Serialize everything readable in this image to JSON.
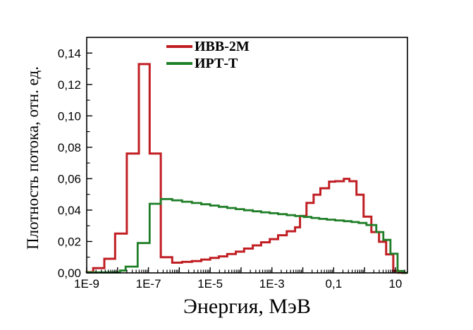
{
  "figure": {
    "background": "#ffffff",
    "xlabel": "Энергия, МэВ",
    "ylabel": "Плотность потока, отн. ед.",
    "legend": [
      {
        "label": "ИВВ-2М",
        "color": "#c01e23"
      },
      {
        "label": "ИРТ-Т",
        "color": "#1f7e27"
      }
    ]
  },
  "chart_data": {
    "type": "line",
    "subtype": "step-histogram",
    "title": "",
    "xlabel": "Энергия, МэВ",
    "ylabel": "Плотность потока, отн. ед.",
    "x_scale": "log10",
    "xlim_log10": [
      -9,
      1.39
    ],
    "ylim": [
      0,
      0.15
    ],
    "grid": false,
    "legend_position": "top-center-inside",
    "x_ticks": [
      {
        "log10": -9,
        "label": "1E-9"
      },
      {
        "log10": -7,
        "label": "1E-7"
      },
      {
        "log10": -5,
        "label": "1E-5"
      },
      {
        "log10": -3,
        "label": "1E-3"
      },
      {
        "log10": -1,
        "label": "0,1"
      },
      {
        "log10": 1,
        "label": "10"
      }
    ],
    "x_unlabeled_decades": [
      -8,
      -6,
      -4,
      -2,
      0
    ],
    "y_ticks": [
      {
        "value": 0.0,
        "label": "0,00"
      },
      {
        "value": 0.02,
        "label": "0,02"
      },
      {
        "value": 0.04,
        "label": "0,04"
      },
      {
        "value": 0.06,
        "label": "0,06"
      },
      {
        "value": 0.08,
        "label": "0,08"
      },
      {
        "value": 0.1,
        "label": "0,10"
      },
      {
        "value": 0.12,
        "label": "0,12"
      },
      {
        "value": 0.14,
        "label": "0,14"
      }
    ],
    "y_minor_step": 0.01,
    "series": [
      {
        "name": "ИВВ-2М",
        "color": "#c01e23",
        "line_width": 3,
        "bin_edges_log10": [
          -9.0,
          -8.79,
          -8.43,
          -8.08,
          -7.7,
          -7.31,
          -6.96,
          -6.6,
          -6.23,
          -5.91,
          -5.59,
          -5.29,
          -5.0,
          -4.72,
          -4.45,
          -4.17,
          -3.9,
          -3.62,
          -3.35,
          -3.07,
          -2.8,
          -2.52,
          -2.25,
          -2.09,
          -1.88,
          -1.65,
          -1.43,
          -1.15,
          -0.95,
          -0.67,
          -0.49,
          -0.26,
          -0.03,
          0.22,
          0.47,
          0.7,
          0.93,
          1.09,
          1.23
        ],
        "values": [
          0.0005,
          0.003,
          0.009,
          0.025,
          0.076,
          0.133,
          0.076,
          0.01,
          0.0065,
          0.007,
          0.0075,
          0.0085,
          0.0095,
          0.0105,
          0.012,
          0.0135,
          0.0155,
          0.0175,
          0.0195,
          0.0215,
          0.024,
          0.0265,
          0.029,
          0.0363,
          0.0446,
          0.0498,
          0.0539,
          0.0581,
          0.0584,
          0.0599,
          0.0584,
          0.0498,
          0.0358,
          0.026,
          0.0198,
          0.0118,
          0.0012,
          0.0002
        ]
      },
      {
        "name": "ИРТ-Т",
        "color": "#1f7e27",
        "line_width": 2.8,
        "bin_edges_log10": [
          -9.0,
          -7.92,
          -7.74,
          -7.35,
          -6.96,
          -6.6,
          -6.23,
          -5.91,
          -5.59,
          -5.29,
          -5.0,
          -4.72,
          -4.45,
          -4.17,
          -3.9,
          -3.62,
          -3.35,
          -3.07,
          -2.8,
          -2.52,
          -2.25,
          -1.97,
          -1.72,
          -1.47,
          -1.22,
          -0.95,
          -0.67,
          -0.42,
          -0.19,
          0.06,
          0.38,
          0.61,
          0.84,
          1.07,
          1.27
        ],
        "values": [
          0.0003,
          0.0015,
          0.004,
          0.019,
          0.044,
          0.047,
          0.0462,
          0.0453,
          0.0445,
          0.0437,
          0.0429,
          0.0421,
          0.0413,
          0.0406,
          0.0399,
          0.0392,
          0.0386,
          0.038,
          0.0374,
          0.0368,
          0.0362,
          0.0356,
          0.035,
          0.0344,
          0.0339,
          0.0334,
          0.0329,
          0.0324,
          0.0318,
          0.0305,
          0.026,
          0.021,
          0.0122,
          0.0012
        ]
      }
    ]
  }
}
